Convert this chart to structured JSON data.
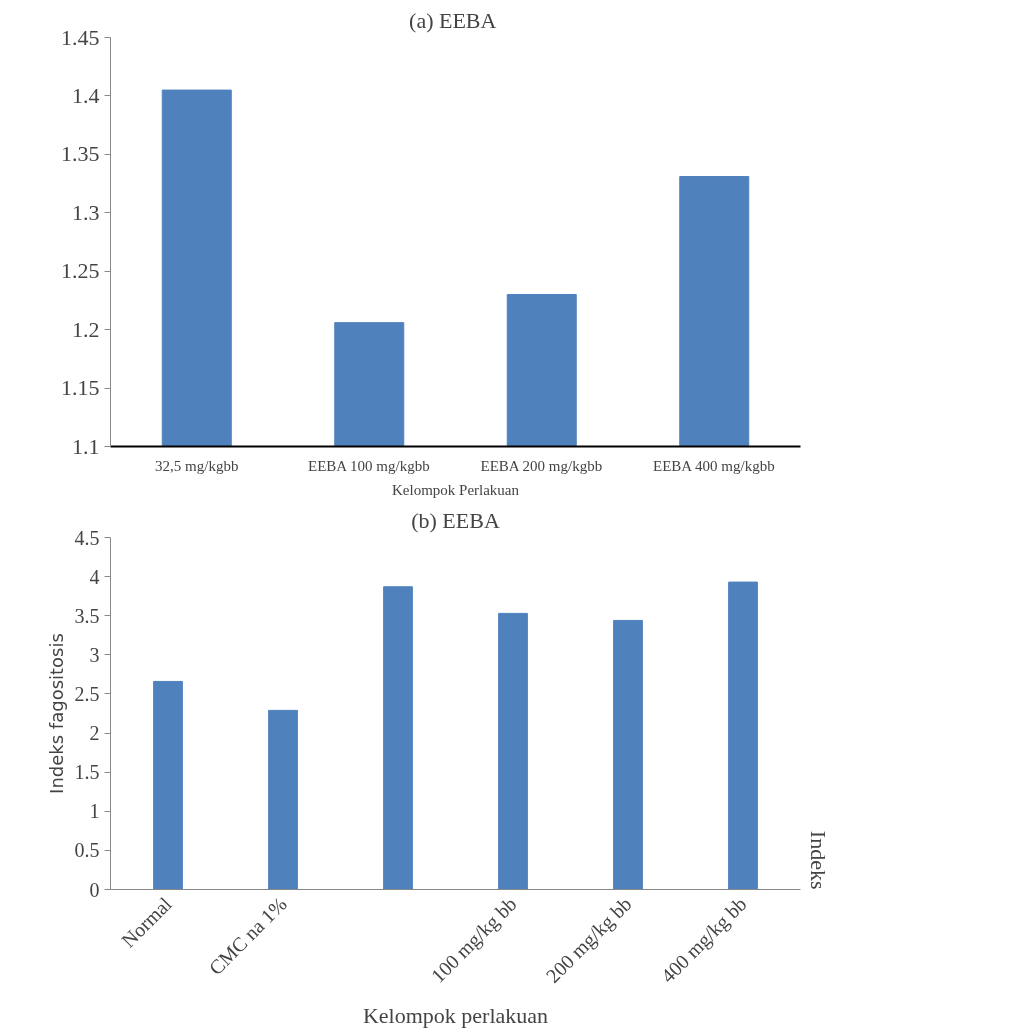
{
  "chart_data": [
    {
      "type": "bar",
      "title": "(a)  EEBA",
      "xlabel": "Kelompok Perlakuan",
      "categories": [
        "32,5 mg/kgbb",
        "EEBA 100 mg/kgbb",
        "EEBA 200 mg/kgbb",
        "EEBA 400 mg/kgbb"
      ],
      "values": [
        1.405,
        1.206,
        1.23,
        1.331
      ],
      "color": "#4f81bd",
      "ylim": [
        1.1,
        1.45
      ],
      "yticks": [
        1.1,
        1.15,
        1.2,
        1.25,
        1.3,
        1.35,
        1.4,
        1.45
      ],
      "grid": false
    },
    {
      "type": "bar",
      "title": "(b) EEBA",
      "xlabel": "Kelompok perlakuan",
      "ylabel": "Indeks fagositosis",
      "categories": [
        "Normal",
        "CMC na 1%",
        null,
        "100 mg/kg bb",
        "200 mg/kg bb",
        "400 mg/kg bb"
      ],
      "values": [
        2.66,
        2.29,
        3.87,
        3.53,
        3.44,
        3.93
      ],
      "color": "#4f81bd",
      "ylim": [
        0,
        4.5
      ],
      "yticks": [
        0,
        0.5,
        1,
        1.5,
        2,
        2.5,
        3,
        3.5,
        4,
        4.5
      ],
      "grid": false,
      "annotations": [
        "Indeks"
      ]
    }
  ]
}
